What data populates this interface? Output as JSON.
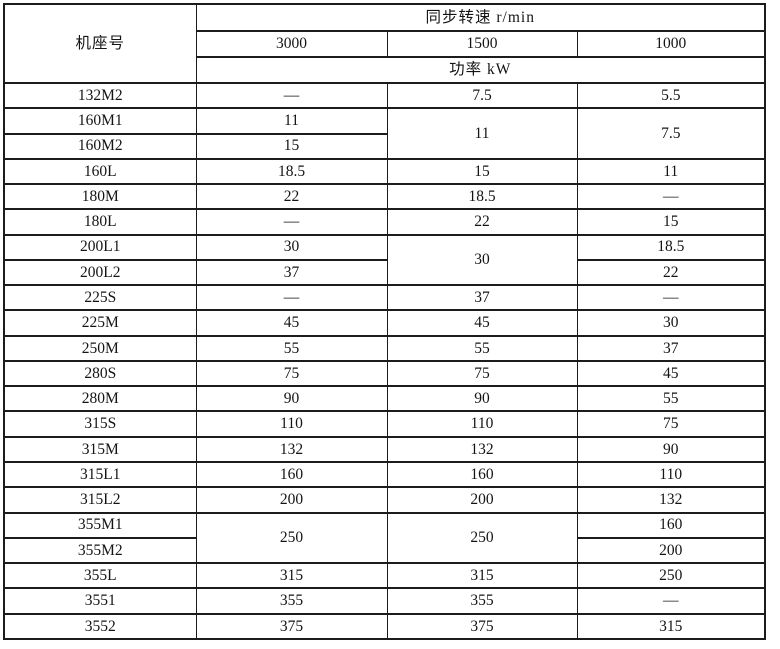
{
  "table": {
    "header": {
      "frame_label": "机座号",
      "speed_label": "同步转速 r/min",
      "speed_columns": [
        "3000",
        "1500",
        "1000"
      ],
      "power_label": "功率 kW"
    },
    "rows": [
      {
        "cells": [
          {
            "t": "132M2"
          },
          {
            "t": "—"
          },
          {
            "t": "7.5"
          },
          {
            "t": "5.5"
          }
        ]
      },
      {
        "cells": [
          {
            "t": "160M1"
          },
          {
            "t": "11"
          },
          {
            "t": "11",
            "rs": 2
          },
          {
            "t": "7.5",
            "rs": 2
          }
        ]
      },
      {
        "cells": [
          {
            "t": "160M2"
          },
          {
            "t": "15"
          }
        ]
      },
      {
        "cells": [
          {
            "t": "160L"
          },
          {
            "t": "18.5"
          },
          {
            "t": "15"
          },
          {
            "t": "11"
          }
        ]
      },
      {
        "cells": [
          {
            "t": "180M"
          },
          {
            "t": "22"
          },
          {
            "t": "18.5"
          },
          {
            "t": "—"
          }
        ]
      },
      {
        "cells": [
          {
            "t": "180L"
          },
          {
            "t": "—"
          },
          {
            "t": "22"
          },
          {
            "t": "15"
          }
        ]
      },
      {
        "cells": [
          {
            "t": "200L1"
          },
          {
            "t": "30"
          },
          {
            "t": "30",
            "rs": 2
          },
          {
            "t": "18.5"
          }
        ]
      },
      {
        "cells": [
          {
            "t": "200L2"
          },
          {
            "t": "37"
          },
          {
            "t": "22"
          }
        ]
      },
      {
        "cells": [
          {
            "t": "225S"
          },
          {
            "t": "—"
          },
          {
            "t": "37"
          },
          {
            "t": "—"
          }
        ]
      },
      {
        "cells": [
          {
            "t": "225M"
          },
          {
            "t": "45"
          },
          {
            "t": "45"
          },
          {
            "t": "30"
          }
        ]
      },
      {
        "cells": [
          {
            "t": "250M"
          },
          {
            "t": "55"
          },
          {
            "t": "55"
          },
          {
            "t": "37"
          }
        ]
      },
      {
        "cells": [
          {
            "t": "280S"
          },
          {
            "t": "75"
          },
          {
            "t": "75"
          },
          {
            "t": "45"
          }
        ]
      },
      {
        "cells": [
          {
            "t": "280M"
          },
          {
            "t": "90"
          },
          {
            "t": "90"
          },
          {
            "t": "55"
          }
        ]
      },
      {
        "cells": [
          {
            "t": "315S"
          },
          {
            "t": "110"
          },
          {
            "t": "110"
          },
          {
            "t": "75"
          }
        ]
      },
      {
        "cells": [
          {
            "t": "315M"
          },
          {
            "t": "132"
          },
          {
            "t": "132"
          },
          {
            "t": "90"
          }
        ]
      },
      {
        "cells": [
          {
            "t": "315L1"
          },
          {
            "t": "160"
          },
          {
            "t": "160"
          },
          {
            "t": "110"
          }
        ]
      },
      {
        "cells": [
          {
            "t": "315L2"
          },
          {
            "t": "200"
          },
          {
            "t": "200"
          },
          {
            "t": "132"
          }
        ]
      },
      {
        "cells": [
          {
            "t": "355M1"
          },
          {
            "t": "250",
            "rs": 2
          },
          {
            "t": "250",
            "rs": 2
          },
          {
            "t": "160"
          }
        ]
      },
      {
        "cells": [
          {
            "t": "355M2"
          },
          {
            "t": "200"
          }
        ]
      },
      {
        "cells": [
          {
            "t": "355L"
          },
          {
            "t": "315"
          },
          {
            "t": "315"
          },
          {
            "t": "250"
          }
        ]
      },
      {
        "cells": [
          {
            "t": "3551"
          },
          {
            "t": "355"
          },
          {
            "t": "355"
          },
          {
            "t": "—"
          }
        ]
      },
      {
        "cells": [
          {
            "t": "3552"
          },
          {
            "t": "375"
          },
          {
            "t": "375"
          },
          {
            "t": "315"
          }
        ]
      }
    ]
  }
}
